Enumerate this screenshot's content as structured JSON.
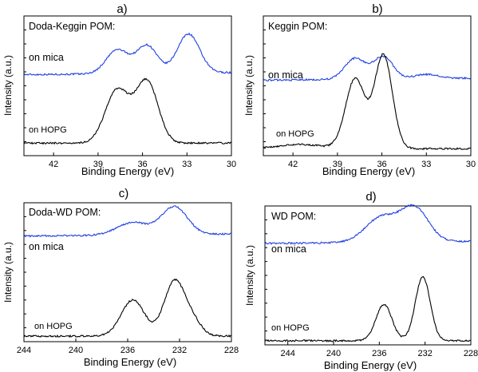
{
  "chart_data": [
    {
      "type": "line",
      "panel_label": "a)",
      "title": "Doda-Keggin POM:",
      "xlabel": "Binding Energy (eV)",
      "ylabel": "Intensity (a.u.)",
      "xlim": [
        44,
        30
      ],
      "xticks": [
        "42",
        "39",
        "36",
        "33",
        "30"
      ],
      "xtick_values": [
        42,
        39,
        36,
        33,
        30
      ],
      "colors": {
        "on mica": "#1f3fe0",
        "on HOPG": "#000000"
      },
      "series": [
        {
          "name": "on mica",
          "baseline": 0.58,
          "peaks": [
            {
              "x": 37.7,
              "h": 0.17,
              "w": 0.75
            },
            {
              "x": 35.7,
              "h": 0.2,
              "w": 0.7
            },
            {
              "x": 32.9,
              "h": 0.28,
              "w": 0.75
            }
          ]
        },
        {
          "name": "on HOPG",
          "baseline": 0.09,
          "peaks": [
            {
              "x": 37.7,
              "h": 0.38,
              "w": 0.8
            },
            {
              "x": 35.7,
              "h": 0.44,
              "w": 0.75
            }
          ]
        }
      ]
    },
    {
      "type": "line",
      "panel_label": "b)",
      "title": "Keggin POM:",
      "xlabel": "Binding Energy (eV)",
      "ylabel": "Intensity (a.u.)",
      "xlim": [
        44,
        30
      ],
      "xticks": [
        "42",
        "39",
        "36",
        "33",
        "30"
      ],
      "xtick_values": [
        42,
        39,
        36,
        33,
        30
      ],
      "colors": {
        "on mica": "#1f3fe0",
        "on HOPG": "#000000"
      },
      "series": [
        {
          "name": "on mica",
          "baseline": 0.54,
          "peaks": [
            {
              "x": 37.8,
              "h": 0.15,
              "w": 0.7
            },
            {
              "x": 35.9,
              "h": 0.16,
              "w": 0.65
            },
            {
              "x": 33.0,
              "h": 0.03,
              "w": 0.8
            }
          ]
        },
        {
          "name": "on HOPG",
          "baseline": 0.05,
          "peaks": [
            {
              "x": 41.5,
              "h": 0.03,
              "w": 1.5
            },
            {
              "x": 37.8,
              "h": 0.5,
              "w": 0.65
            },
            {
              "x": 35.9,
              "h": 0.67,
              "w": 0.6
            }
          ]
        }
      ]
    },
    {
      "type": "line",
      "panel_label": "c)",
      "title": "Doda-WD POM:",
      "xlabel": "Binding Energy (eV)",
      "ylabel": "Intensity (a.u.)",
      "xlim": [
        244,
        228
      ],
      "xticks": [
        "244",
        "240",
        "236",
        "232",
        "228"
      ],
      "xtick_values": [
        244,
        240,
        236,
        232,
        228
      ],
      "colors": {
        "on mica": "#1f3fe0",
        "on HOPG": "#000000"
      },
      "series": [
        {
          "name": "on mica",
          "baseline": 0.76,
          "peaks": [
            {
              "x": 235.6,
              "h": 0.09,
              "w": 1.2
            },
            {
              "x": 232.4,
              "h": 0.2,
              "w": 1.0
            }
          ]
        },
        {
          "name": "on HOPG",
          "baseline": 0.04,
          "peaks": [
            {
              "x": 235.6,
              "h": 0.26,
              "w": 0.9
            },
            {
              "x": 232.4,
              "h": 0.39,
              "w": 0.8
            },
            {
              "x": 231.0,
              "h": 0.1,
              "w": 0.7
            }
          ]
        }
      ]
    },
    {
      "type": "line",
      "panel_label": "d)",
      "title": "WD POM:",
      "xlabel": "Binding Energy (eV)",
      "ylabel": "Intensity (a.u.)",
      "xlim": [
        246,
        228
      ],
      "xticks": [
        "244",
        "240",
        "236",
        "232",
        "228"
      ],
      "xtick_values": [
        244,
        240,
        236,
        232,
        228
      ],
      "colors": {
        "on mica": "#1f3fe0",
        "on HOPG": "#000000"
      },
      "series": [
        {
          "name": "on mica",
          "baseline": 0.73,
          "peaks": [
            {
              "x": 235.8,
              "h": 0.18,
              "w": 1.4
            },
            {
              "x": 232.9,
              "h": 0.24,
              "w": 1.2
            }
          ]
        },
        {
          "name": "on HOPG",
          "baseline": 0.03,
          "peaks": [
            {
              "x": 235.6,
              "h": 0.26,
              "w": 0.7
            },
            {
              "x": 232.2,
              "h": 0.46,
              "w": 0.65
            }
          ]
        }
      ]
    }
  ]
}
